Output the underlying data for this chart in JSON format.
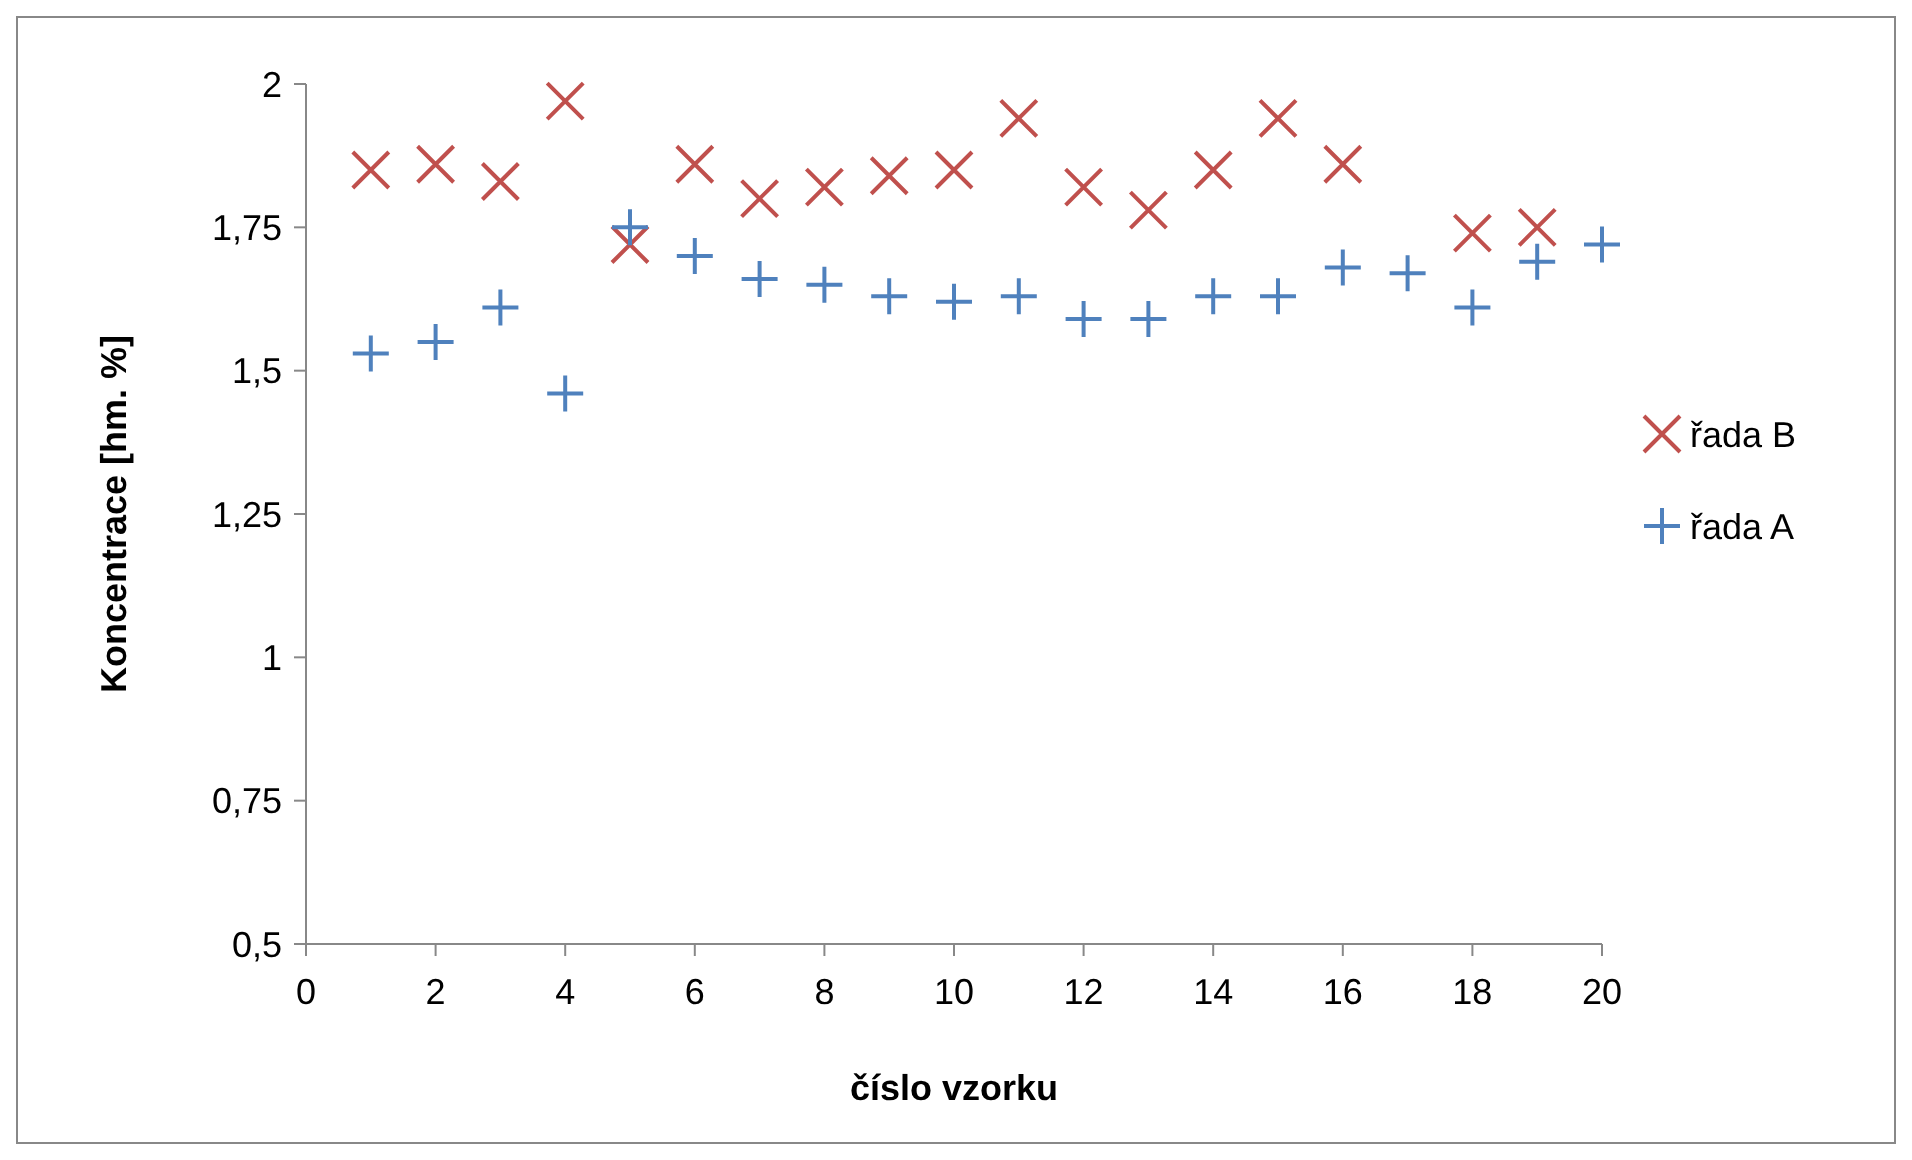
{
  "chart_data": {
    "type": "scatter",
    "xlabel": "číslo vzorku",
    "ylabel": "Koncentrace [hm. %]",
    "x": [
      1,
      2,
      3,
      4,
      5,
      6,
      7,
      8,
      9,
      10,
      11,
      12,
      13,
      14,
      15,
      16,
      17,
      18,
      19,
      20
    ],
    "xlim": [
      0,
      20
    ],
    "xticks": [
      0,
      2,
      4,
      6,
      8,
      10,
      12,
      14,
      16,
      18,
      20
    ],
    "ylim": [
      0.5,
      2
    ],
    "yticks": [
      {
        "value": 0.5,
        "label": "0,5"
      },
      {
        "value": 0.75,
        "label": "0,75"
      },
      {
        "value": 1,
        "label": "1"
      },
      {
        "value": 1.25,
        "label": "1,25"
      },
      {
        "value": 1.5,
        "label": "1,5"
      },
      {
        "value": 1.75,
        "label": "1,75"
      },
      {
        "value": 2,
        "label": "2"
      }
    ],
    "grid": false,
    "legend": "right",
    "series": [
      {
        "name": "řada B",
        "color": "#c0504d",
        "marker": "cross",
        "values": [
          1.85,
          1.86,
          1.83,
          1.97,
          1.72,
          1.86,
          1.8,
          1.82,
          1.84,
          1.85,
          1.94,
          1.82,
          1.78,
          1.85,
          1.94,
          1.86,
          null,
          1.74,
          1.75,
          null
        ]
      },
      {
        "name": "řada A",
        "color": "#4f81bd",
        "marker": "plus",
        "values": [
          1.53,
          1.55,
          1.61,
          1.46,
          1.75,
          1.7,
          1.66,
          1.65,
          1.63,
          1.62,
          1.63,
          1.59,
          1.59,
          1.63,
          1.63,
          1.68,
          1.67,
          1.61,
          1.69,
          1.72
        ]
      }
    ]
  }
}
